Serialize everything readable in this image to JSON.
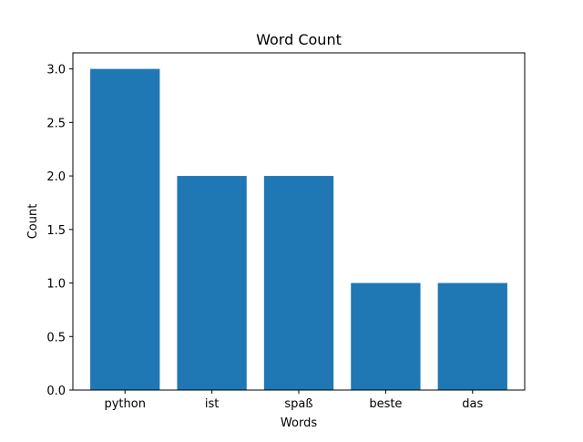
{
  "chart_data": {
    "type": "bar",
    "title": "Word Count",
    "xlabel": "Words",
    "ylabel": "Count",
    "categories": [
      "python",
      "ist",
      "spaß",
      "beste",
      "das"
    ],
    "values": [
      3,
      2,
      2,
      1,
      1
    ],
    "ylim": [
      0,
      3.15
    ],
    "yticks": [
      "0.0",
      "0.5",
      "1.0",
      "1.5",
      "2.0",
      "2.5",
      "3.0"
    ],
    "grid": false,
    "legend": "none",
    "bar_color": "#1f77b4"
  }
}
